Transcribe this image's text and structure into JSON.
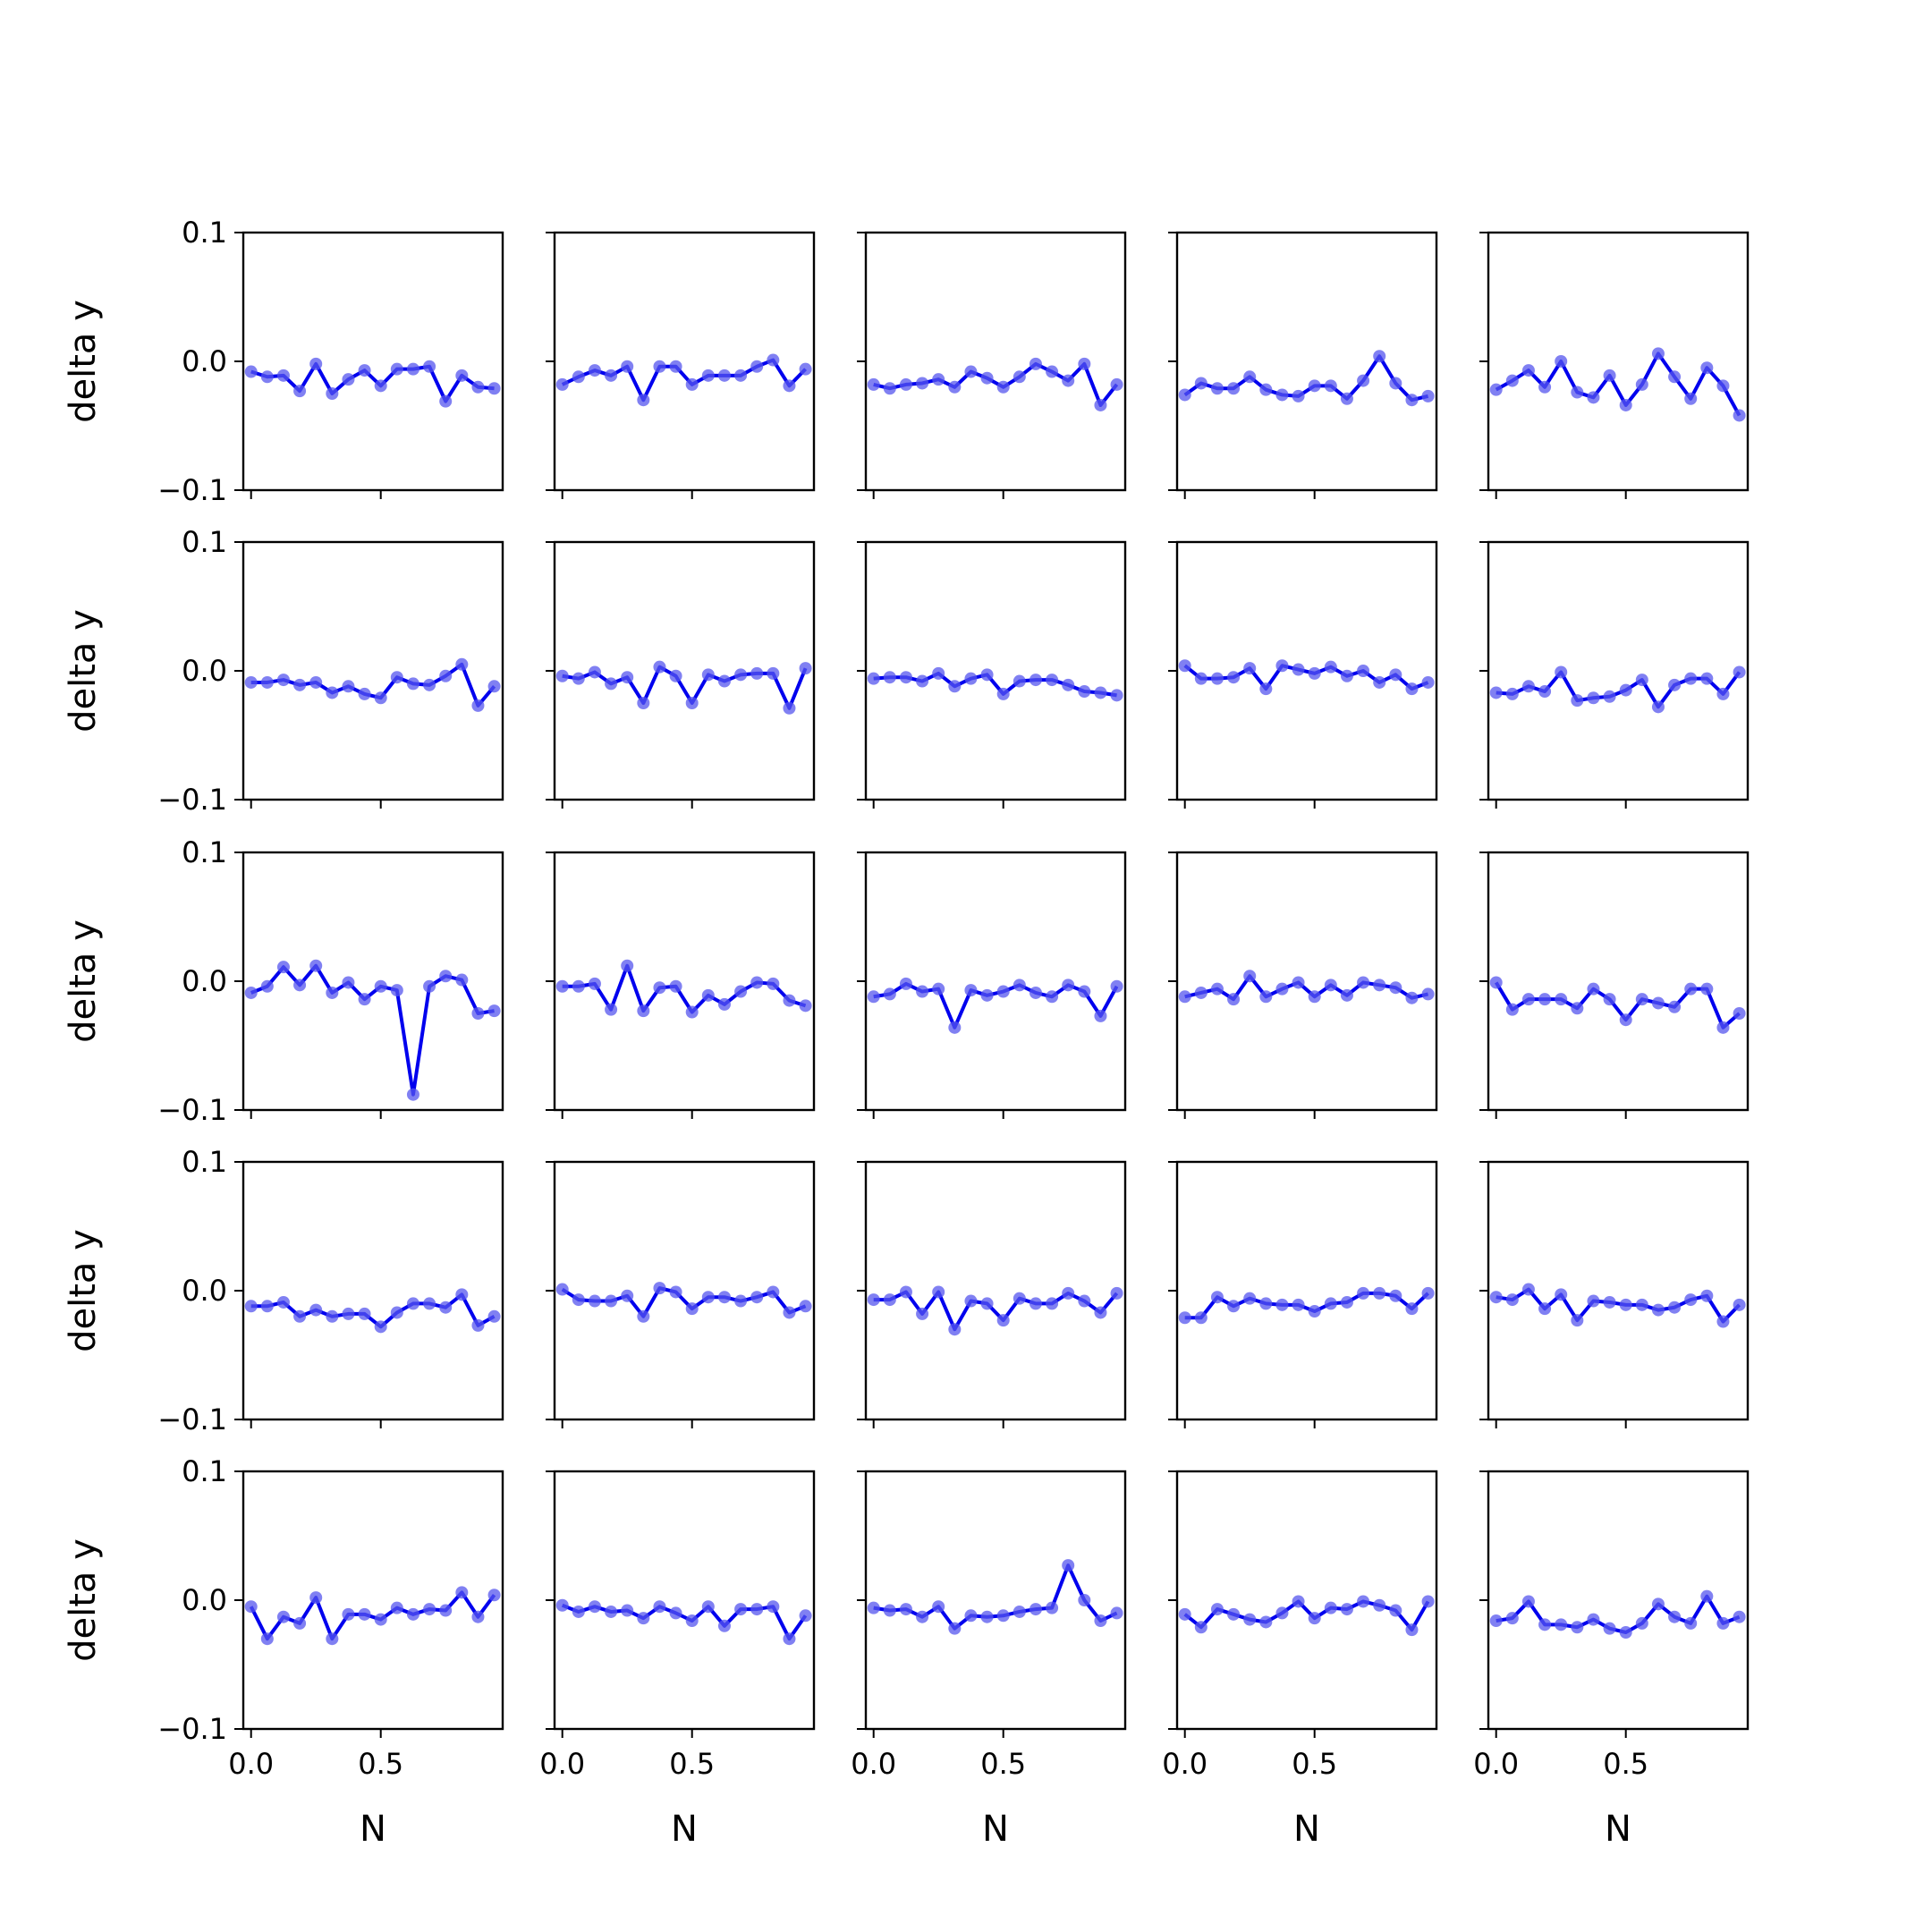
{
  "figure": {
    "rows": 5,
    "cols": 5,
    "line_color": "#0000ee",
    "marker_color": "#5555ee"
  },
  "chart_data": {
    "type": "line",
    "xlabel": "N",
    "ylabel": "delta y",
    "xlim": [
      -0.03,
      0.97
    ],
    "ylim": [
      -0.1,
      0.1
    ],
    "xticks": [
      0.0,
      0.5
    ],
    "xtick_labels": [
      "0.0",
      "0.5"
    ],
    "yticks": [
      -0.1,
      0.0,
      0.1
    ],
    "ytick_labels": [
      "−0.1",
      "0.0",
      "0.1"
    ],
    "x": [
      0.0,
      0.0625,
      0.125,
      0.1875,
      0.25,
      0.3125,
      0.375,
      0.4375,
      0.5,
      0.5625,
      0.625,
      0.6875,
      0.75,
      0.8125,
      0.875,
      0.9375
    ],
    "panels": [
      {
        "row": 1,
        "col": 1,
        "values": [
          -0.008,
          -0.012,
          -0.011,
          -0.023,
          -0.002,
          -0.025,
          -0.014,
          -0.007,
          -0.019,
          -0.006,
          -0.006,
          -0.004,
          -0.031,
          -0.011,
          -0.02,
          -0.021
        ]
      },
      {
        "row": 1,
        "col": 2,
        "values": [
          -0.018,
          -0.012,
          -0.007,
          -0.011,
          -0.004,
          -0.03,
          -0.004,
          -0.004,
          -0.018,
          -0.011,
          -0.011,
          -0.011,
          -0.004,
          0.001,
          -0.019,
          -0.006
        ]
      },
      {
        "row": 1,
        "col": 3,
        "values": [
          -0.018,
          -0.021,
          -0.018,
          -0.017,
          -0.014,
          -0.02,
          -0.008,
          -0.013,
          -0.02,
          -0.012,
          -0.002,
          -0.008,
          -0.015,
          -0.002,
          -0.034,
          -0.018
        ]
      },
      {
        "row": 1,
        "col": 4,
        "values": [
          -0.026,
          -0.017,
          -0.021,
          -0.021,
          -0.012,
          -0.022,
          -0.026,
          -0.027,
          -0.019,
          -0.019,
          -0.029,
          -0.015,
          0.004,
          -0.017,
          -0.03,
          -0.027
        ]
      },
      {
        "row": 1,
        "col": 5,
        "values": [
          -0.022,
          -0.015,
          -0.007,
          -0.02,
          0.0,
          -0.024,
          -0.028,
          -0.011,
          -0.034,
          -0.018,
          0.006,
          -0.012,
          -0.029,
          -0.005,
          -0.019,
          -0.042
        ]
      },
      {
        "row": 2,
        "col": 1,
        "values": [
          -0.009,
          -0.009,
          -0.007,
          -0.011,
          -0.009,
          -0.017,
          -0.012,
          -0.018,
          -0.021,
          -0.005,
          -0.01,
          -0.011,
          -0.004,
          0.005,
          -0.027,
          -0.012
        ]
      },
      {
        "row": 2,
        "col": 2,
        "values": [
          -0.004,
          -0.006,
          -0.001,
          -0.01,
          -0.005,
          -0.025,
          0.003,
          -0.004,
          -0.025,
          -0.003,
          -0.008,
          -0.003,
          -0.002,
          -0.002,
          -0.029,
          0.002
        ]
      },
      {
        "row": 2,
        "col": 3,
        "values": [
          -0.006,
          -0.005,
          -0.005,
          -0.008,
          -0.002,
          -0.012,
          -0.006,
          -0.003,
          -0.018,
          -0.008,
          -0.007,
          -0.007,
          -0.011,
          -0.016,
          -0.017,
          -0.019
        ]
      },
      {
        "row": 2,
        "col": 4,
        "values": [
          0.004,
          -0.006,
          -0.006,
          -0.005,
          0.002,
          -0.014,
          0.004,
          0.001,
          -0.002,
          0.003,
          -0.004,
          0.0,
          -0.009,
          -0.003,
          -0.014,
          -0.009
        ]
      },
      {
        "row": 2,
        "col": 5,
        "values": [
          -0.017,
          -0.018,
          -0.012,
          -0.016,
          -0.001,
          -0.023,
          -0.021,
          -0.02,
          -0.015,
          -0.007,
          -0.028,
          -0.011,
          -0.006,
          -0.006,
          -0.018,
          -0.001
        ]
      },
      {
        "row": 3,
        "col": 1,
        "values": [
          -0.009,
          -0.004,
          0.011,
          -0.003,
          0.012,
          -0.009,
          -0.001,
          -0.014,
          -0.004,
          -0.007,
          -0.088,
          -0.004,
          0.004,
          0.001,
          -0.025,
          -0.023
        ]
      },
      {
        "row": 3,
        "col": 2,
        "values": [
          -0.004,
          -0.004,
          -0.002,
          -0.022,
          0.012,
          -0.023,
          -0.005,
          -0.004,
          -0.024,
          -0.011,
          -0.018,
          -0.008,
          -0.001,
          -0.002,
          -0.015,
          -0.019
        ]
      },
      {
        "row": 3,
        "col": 3,
        "values": [
          -0.012,
          -0.01,
          -0.002,
          -0.008,
          -0.006,
          -0.036,
          -0.007,
          -0.011,
          -0.008,
          -0.003,
          -0.009,
          -0.012,
          -0.003,
          -0.008,
          -0.027,
          -0.004
        ]
      },
      {
        "row": 3,
        "col": 4,
        "values": [
          -0.012,
          -0.009,
          -0.006,
          -0.014,
          0.004,
          -0.012,
          -0.006,
          -0.001,
          -0.012,
          -0.003,
          -0.011,
          -0.001,
          -0.003,
          -0.005,
          -0.013,
          -0.01
        ]
      },
      {
        "row": 3,
        "col": 5,
        "values": [
          -0.001,
          -0.022,
          -0.014,
          -0.014,
          -0.014,
          -0.021,
          -0.006,
          -0.014,
          -0.03,
          -0.014,
          -0.017,
          -0.02,
          -0.006,
          -0.006,
          -0.036,
          -0.025
        ]
      },
      {
        "row": 4,
        "col": 1,
        "values": [
          -0.012,
          -0.012,
          -0.009,
          -0.02,
          -0.015,
          -0.02,
          -0.018,
          -0.018,
          -0.028,
          -0.017,
          -0.01,
          -0.01,
          -0.013,
          -0.003,
          -0.027,
          -0.02
        ]
      },
      {
        "row": 4,
        "col": 2,
        "values": [
          0.001,
          -0.007,
          -0.008,
          -0.008,
          -0.004,
          -0.02,
          0.002,
          -0.001,
          -0.014,
          -0.005,
          -0.005,
          -0.008,
          -0.005,
          -0.001,
          -0.017,
          -0.012
        ]
      },
      {
        "row": 4,
        "col": 3,
        "values": [
          -0.007,
          -0.007,
          -0.001,
          -0.018,
          -0.001,
          -0.03,
          -0.008,
          -0.01,
          -0.023,
          -0.006,
          -0.01,
          -0.01,
          -0.002,
          -0.008,
          -0.017,
          -0.002
        ]
      },
      {
        "row": 4,
        "col": 4,
        "values": [
          -0.021,
          -0.021,
          -0.005,
          -0.012,
          -0.006,
          -0.01,
          -0.011,
          -0.011,
          -0.016,
          -0.01,
          -0.009,
          -0.002,
          -0.002,
          -0.004,
          -0.014,
          -0.002
        ]
      },
      {
        "row": 4,
        "col": 5,
        "values": [
          -0.005,
          -0.007,
          0.001,
          -0.014,
          -0.003,
          -0.023,
          -0.008,
          -0.009,
          -0.011,
          -0.011,
          -0.015,
          -0.013,
          -0.007,
          -0.004,
          -0.024,
          -0.011
        ]
      },
      {
        "row": 5,
        "col": 1,
        "values": [
          -0.005,
          -0.03,
          -0.013,
          -0.018,
          0.002,
          -0.03,
          -0.011,
          -0.011,
          -0.015,
          -0.006,
          -0.011,
          -0.007,
          -0.008,
          0.006,
          -0.013,
          0.004
        ]
      },
      {
        "row": 5,
        "col": 2,
        "values": [
          -0.004,
          -0.009,
          -0.005,
          -0.009,
          -0.008,
          -0.014,
          -0.005,
          -0.01,
          -0.016,
          -0.005,
          -0.02,
          -0.007,
          -0.007,
          -0.005,
          -0.03,
          -0.012
        ]
      },
      {
        "row": 5,
        "col": 3,
        "values": [
          -0.006,
          -0.008,
          -0.007,
          -0.013,
          -0.005,
          -0.022,
          -0.012,
          -0.013,
          -0.012,
          -0.009,
          -0.007,
          -0.006,
          0.027,
          0.0,
          -0.016,
          -0.01
        ]
      },
      {
        "row": 5,
        "col": 4,
        "values": [
          -0.011,
          -0.021,
          -0.007,
          -0.011,
          -0.015,
          -0.017,
          -0.01,
          -0.001,
          -0.014,
          -0.006,
          -0.007,
          -0.001,
          -0.004,
          -0.008,
          -0.023,
          -0.001
        ]
      },
      {
        "row": 5,
        "col": 5,
        "values": [
          -0.016,
          -0.014,
          -0.001,
          -0.019,
          -0.019,
          -0.021,
          -0.015,
          -0.022,
          -0.025,
          -0.018,
          -0.003,
          -0.013,
          -0.018,
          0.003,
          -0.018,
          -0.013
        ]
      }
    ]
  }
}
